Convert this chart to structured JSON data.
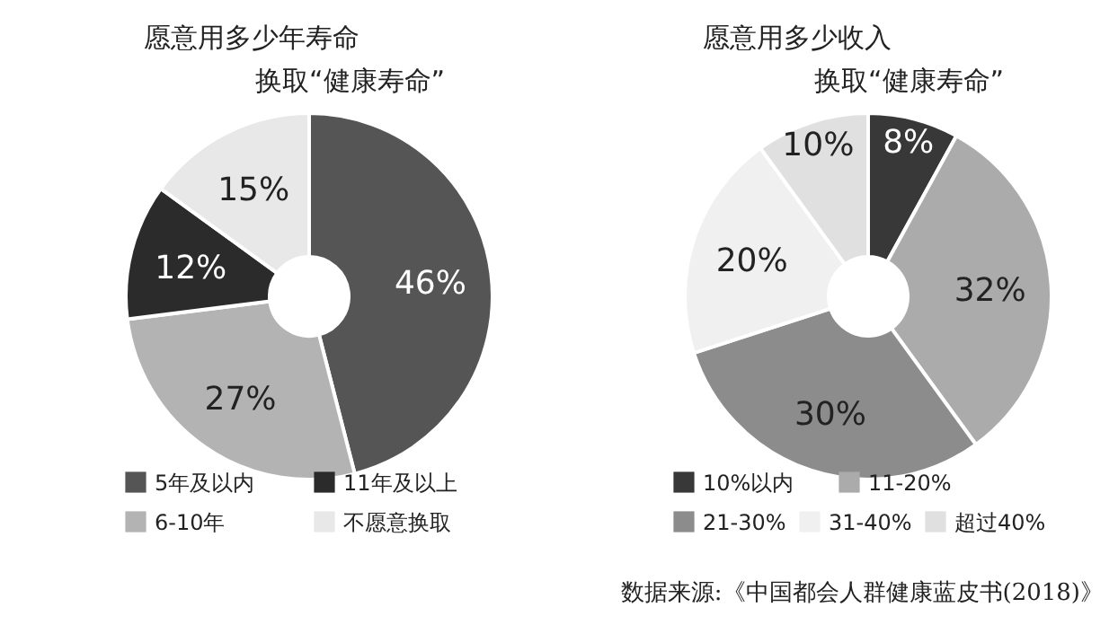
{
  "chart_data": [
    {
      "type": "donut",
      "title": "愿意用多少年寿命",
      "subtitle": "换取“健康寿命”",
      "categories": [
        "5年及以内",
        "6-10年",
        "11年及以上",
        "不愿意换取"
      ],
      "values": [
        46,
        27,
        12,
        15
      ],
      "value_labels": [
        "46%",
        "27%",
        "12%",
        "15%"
      ],
      "colors": [
        "#555555",
        "#b3b3b3",
        "#2b2b2b",
        "#e8e8e8"
      ],
      "legend": "bottom"
    },
    {
      "type": "donut",
      "title": "愿意用多少收入",
      "subtitle": "换取“健康寿命”",
      "categories": [
        "10%以内",
        "11-20%",
        "21-30%",
        "31-40%",
        "超过40%"
      ],
      "values": [
        8,
        32,
        30,
        20,
        10
      ],
      "value_labels": [
        "8%",
        "32%",
        "30%",
        "20%",
        "10%"
      ],
      "colors": [
        "#383838",
        "#ababab",
        "#8c8c8c",
        "#f0f0f0",
        "#e0e0e0"
      ],
      "legend": "bottom",
      "annotations": [
        "数据来源:《中国都会人群健康蓝皮书(2018)》"
      ]
    }
  ]
}
